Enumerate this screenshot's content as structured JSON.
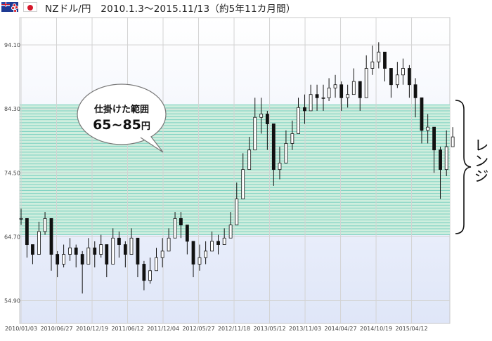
{
  "header": {
    "flag_left_icon": "nz-flag-icon",
    "flag_right_icon": "japan-flag-icon",
    "title": "NZドル/円　2010.1.3～2015.11/13（約5年11カ月間）"
  },
  "colors": {
    "plot_bg_top": "#ffffff",
    "plot_bg_bottom": "#dfe6f8",
    "band_fill": "#cfeede",
    "band_stripe": "#5ec6b6",
    "candle": "#111111",
    "grid": "#d3d3d3"
  },
  "callout": {
    "line1": "仕掛けた範囲",
    "line2": "65~85",
    "unit": "円"
  },
  "range_label": "レンジ",
  "chart_data": {
    "type": "candlestick",
    "title": "",
    "xlabel": "",
    "ylabel": "",
    "ylim": [
      53.0,
      96.0
    ],
    "y_ticks": [
      "94.10",
      "84.30",
      "74.50",
      "64.70",
      "54.90"
    ],
    "x_ticks": [
      "2010/01/03",
      "2010/06/27",
      "2010/12/19",
      "2011/06/12",
      "2011/12/04",
      "2012/05/27",
      "2012/11/18",
      "2013/05/12",
      "2013/11/03",
      "2014/04/27",
      "2014/10/19",
      "2015/04/12"
    ],
    "grid": true,
    "band": {
      "from": 65.0,
      "to": 85.0
    },
    "series": [
      {
        "x": [
          "2010/01/03",
          "2010/02/01",
          "2010/03/01",
          "2010/04/01",
          "2010/05/01",
          "2010/06/01",
          "2010/07/01",
          "2010/08/01",
          "2010/09/01",
          "2010/10/01",
          "2010/11/01",
          "2010/12/01",
          "2011/01/01",
          "2011/02/01",
          "2011/03/01",
          "2011/04/01",
          "2011/05/01",
          "2011/06/01",
          "2011/07/01",
          "2011/08/01",
          "2011/09/01",
          "2011/10/01",
          "2011/11/01",
          "2011/12/01",
          "2012/01/01",
          "2012/02/01",
          "2012/03/01",
          "2012/04/01",
          "2012/05/01",
          "2012/06/01",
          "2012/07/01",
          "2012/08/01",
          "2012/09/01",
          "2012/10/01",
          "2012/11/01",
          "2012/12/01",
          "2013/01/01",
          "2013/02/01",
          "2013/03/01",
          "2013/04/01",
          "2013/05/01",
          "2013/06/01",
          "2013/07/01",
          "2013/08/01",
          "2013/09/01",
          "2013/10/01",
          "2013/11/01",
          "2013/12/01",
          "2014/01/01",
          "2014/02/01",
          "2014/03/01",
          "2014/04/01",
          "2014/05/01",
          "2014/06/01",
          "2014/07/01",
          "2014/08/01",
          "2014/09/01",
          "2014/10/01",
          "2014/11/01",
          "2014/12/01",
          "2015/01/01",
          "2015/02/01",
          "2015/03/01",
          "2015/04/01",
          "2015/05/01",
          "2015/06/01",
          "2015/07/01",
          "2015/08/01",
          "2015/09/01",
          "2015/10/01",
          "2015/11/01"
        ],
        "close": [
          67.5,
          63.5,
          62.0,
          65.5,
          67.5,
          62.0,
          60.5,
          62.0,
          63.0,
          62.0,
          60.5,
          63.0,
          62.0,
          63.5,
          60.5,
          64.5,
          63.5,
          62.0,
          64.5,
          60.5,
          58.0,
          59.5,
          61.5,
          62.5,
          64.5,
          67.5,
          66.5,
          64.0,
          60.5,
          61.5,
          62.5,
          64.0,
          63.5,
          64.5,
          66.5,
          70.5,
          75.0,
          78.0,
          83.0,
          83.5,
          82.0,
          75.0,
          76.0,
          79.0,
          80.5,
          84.5,
          84.0,
          86.5,
          86.0,
          86.0,
          87.5,
          88.0,
          86.0,
          86.5,
          88.5,
          86.0,
          90.5,
          91.5,
          93.0,
          90.5,
          88.0,
          89.5,
          90.5,
          88.0,
          86.0,
          81.0,
          81.5,
          78.0,
          75.0,
          78.5,
          80.0
        ],
        "high": [
          69.0,
          65.5,
          63.5,
          67.0,
          68.5,
          65.0,
          62.5,
          63.5,
          64.5,
          63.5,
          62.5,
          64.5,
          64.0,
          65.0,
          63.0,
          66.0,
          65.5,
          64.0,
          66.0,
          63.5,
          61.0,
          61.5,
          63.0,
          64.5,
          66.0,
          68.5,
          68.5,
          66.5,
          63.5,
          63.5,
          64.0,
          65.5,
          65.0,
          66.0,
          68.5,
          73.0,
          77.5,
          80.0,
          86.0,
          86.0,
          84.0,
          78.5,
          78.5,
          81.0,
          82.5,
          86.0,
          86.5,
          88.0,
          88.0,
          88.0,
          89.0,
          89.5,
          88.5,
          88.0,
          90.5,
          88.5,
          92.5,
          94.0,
          94.5,
          92.5,
          90.5,
          91.5,
          92.0,
          91.0,
          89.0,
          84.5,
          83.5,
          81.5,
          78.5,
          81.0,
          81.5
        ],
        "low": [
          66.5,
          61.5,
          60.5,
          63.0,
          65.0,
          59.5,
          58.5,
          60.0,
          61.0,
          60.0,
          56.0,
          61.0,
          60.0,
          61.5,
          58.5,
          62.0,
          61.5,
          60.0,
          62.0,
          58.5,
          56.5,
          57.5,
          59.5,
          60.0,
          62.5,
          65.0,
          64.5,
          62.0,
          58.5,
          59.5,
          60.5,
          62.5,
          62.0,
          63.5,
          65.0,
          68.5,
          72.5,
          76.0,
          79.5,
          80.5,
          78.0,
          72.5,
          73.5,
          76.5,
          78.0,
          82.0,
          82.0,
          84.5,
          84.0,
          84.0,
          85.5,
          86.0,
          84.0,
          84.5,
          86.5,
          84.0,
          88.0,
          89.5,
          90.5,
          88.5,
          86.0,
          87.5,
          88.0,
          86.0,
          83.0,
          79.0,
          79.0,
          74.5,
          70.5,
          74.0,
          78.5
        ]
      }
    ]
  }
}
